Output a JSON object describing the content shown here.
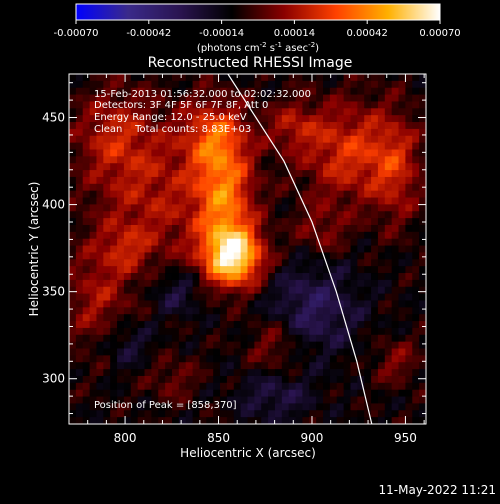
{
  "colorbar": {
    "tick_labels": [
      "-0.00070",
      "-0.00042",
      "-0.00014",
      "0.00014",
      "0.00042",
      "0.00070"
    ],
    "tick_values": [
      -0.0007,
      -0.00042,
      -0.00014,
      0.00014,
      0.00042,
      0.0007
    ],
    "range": [
      -0.0007,
      0.0007
    ],
    "units_prefix": "(photons cm",
    "units_sup1": "-2",
    "units_mid": " s",
    "units_sup2": "-1",
    "units_mid2": " asec",
    "units_sup3": "-2",
    "units_suffix": ")",
    "color_stops": [
      "#0000ff",
      "#3a2a8a",
      "#2a1450",
      "#000000",
      "#8a0000",
      "#ff4000",
      "#ffb000",
      "#ffffff"
    ]
  },
  "chart_data": {
    "type": "heatmap",
    "title": "Reconstructed RHESSI Image",
    "xlabel": "Heliocentric X (arcsec)",
    "ylabel": "Heliocentric Y (arcsec)",
    "xlim": [
      770,
      961
    ],
    "ylim": [
      274,
      475
    ],
    "x_ticks": [
      800,
      850,
      900,
      950
    ],
    "y_ticks": [
      300,
      350,
      400,
      450
    ],
    "annotations": [
      "15-Feb-2013 01:56:32.000 to 02:02:32.000",
      "Detectors: 3F 4F 5F 6F 7F 8F, Att 0",
      "Energy Range: 12.0 - 25.0 keV",
      "Clean    Total counts: 8.83E+03"
    ],
    "peak_label": "Position of Peak = [858,370]",
    "peak": [
      858,
      370
    ],
    "sources": [
      {
        "x": 858,
        "y": 370,
        "sx": 11,
        "sy": 12,
        "amp": 1.0
      },
      {
        "x": 853,
        "y": 405,
        "sx": 11,
        "sy": 22,
        "amp": 0.62
      },
      {
        "x": 848,
        "y": 440,
        "sx": 12,
        "sy": 14,
        "amp": 0.45
      },
      {
        "x": 815,
        "y": 405,
        "sx": 22,
        "sy": 32,
        "amp": 0.32
      },
      {
        "x": 793,
        "y": 440,
        "sx": 14,
        "sy": 18,
        "amp": 0.3
      },
      {
        "x": 785,
        "y": 345,
        "sx": 12,
        "sy": 22,
        "amp": 0.28
      },
      {
        "x": 800,
        "y": 375,
        "sx": 9,
        "sy": 9,
        "amp": 0.22
      },
      {
        "x": 920,
        "y": 430,
        "sx": 18,
        "sy": 20,
        "amp": 0.45
      },
      {
        "x": 945,
        "y": 420,
        "sx": 9,
        "sy": 22,
        "amp": 0.32
      },
      {
        "x": 890,
        "y": 445,
        "sx": 10,
        "sy": 10,
        "amp": 0.28
      },
      {
        "x": 880,
        "y": 320,
        "sx": 10,
        "sy": 12,
        "amp": 0.26
      },
      {
        "x": 905,
        "y": 385,
        "sx": 10,
        "sy": 10,
        "amp": 0.22
      },
      {
        "x": 945,
        "y": 310,
        "sx": 9,
        "sy": 9,
        "amp": 0.22
      },
      {
        "x": 825,
        "y": 300,
        "sx": 10,
        "sy": 9,
        "amp": 0.18
      },
      {
        "x": 900,
        "y": 340,
        "sx": 18,
        "sy": 18,
        "amp": -0.32
      },
      {
        "x": 828,
        "y": 350,
        "sx": 10,
        "sy": 10,
        "amp": -0.26
      },
      {
        "x": 800,
        "y": 320,
        "sx": 10,
        "sy": 10,
        "amp": -0.22
      },
      {
        "x": 880,
        "y": 290,
        "sx": 14,
        "sy": 10,
        "amp": -0.24
      }
    ],
    "limb_curve": [
      [
        855,
        475
      ],
      [
        870,
        450
      ],
      [
        885,
        425
      ],
      [
        900,
        390
      ],
      [
        913,
        350
      ],
      [
        924,
        310
      ],
      [
        932,
        274
      ]
    ]
  },
  "footer": {
    "timestamp": "11-May-2022 11:21"
  }
}
